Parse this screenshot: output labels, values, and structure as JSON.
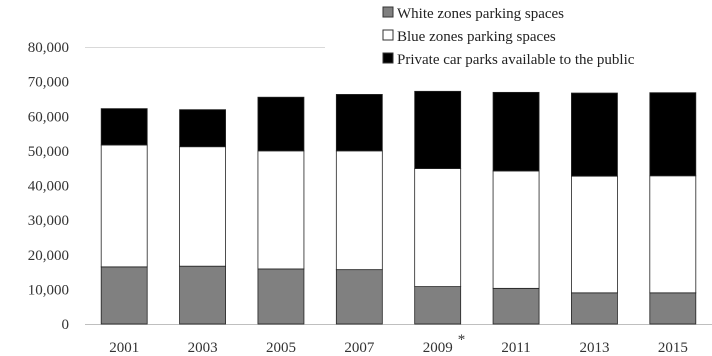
{
  "chart_data": {
    "type": "bar",
    "stacked": true,
    "categories": [
      "2001",
      "2003",
      "2005",
      "2007",
      "2009",
      "2011",
      "2013",
      "2015"
    ],
    "category_notes": {
      "2009": "*"
    },
    "series": [
      {
        "name": "White zones parking spaces",
        "color": "#808080",
        "values": [
          16500,
          16700,
          15900,
          15700,
          10800,
          10300,
          9000,
          9000
        ]
      },
      {
        "name": "Blue zones parking spaces",
        "color": "#ffffff",
        "values": [
          35200,
          34500,
          34100,
          34300,
          34100,
          33900,
          33700,
          33800
        ]
      },
      {
        "name": "Private car parks available to the public",
        "color": "#000000",
        "values": [
          10500,
          10700,
          15500,
          16300,
          22300,
          22700,
          24000,
          24000
        ]
      }
    ],
    "y_ticks": [
      "0",
      "10,000",
      "20,000",
      "30,000",
      "40,000",
      "50,000",
      "60,000",
      "70,000",
      "80,000"
    ],
    "ylim": [
      0,
      80000
    ],
    "grid": false,
    "legend_position": "top-right"
  }
}
